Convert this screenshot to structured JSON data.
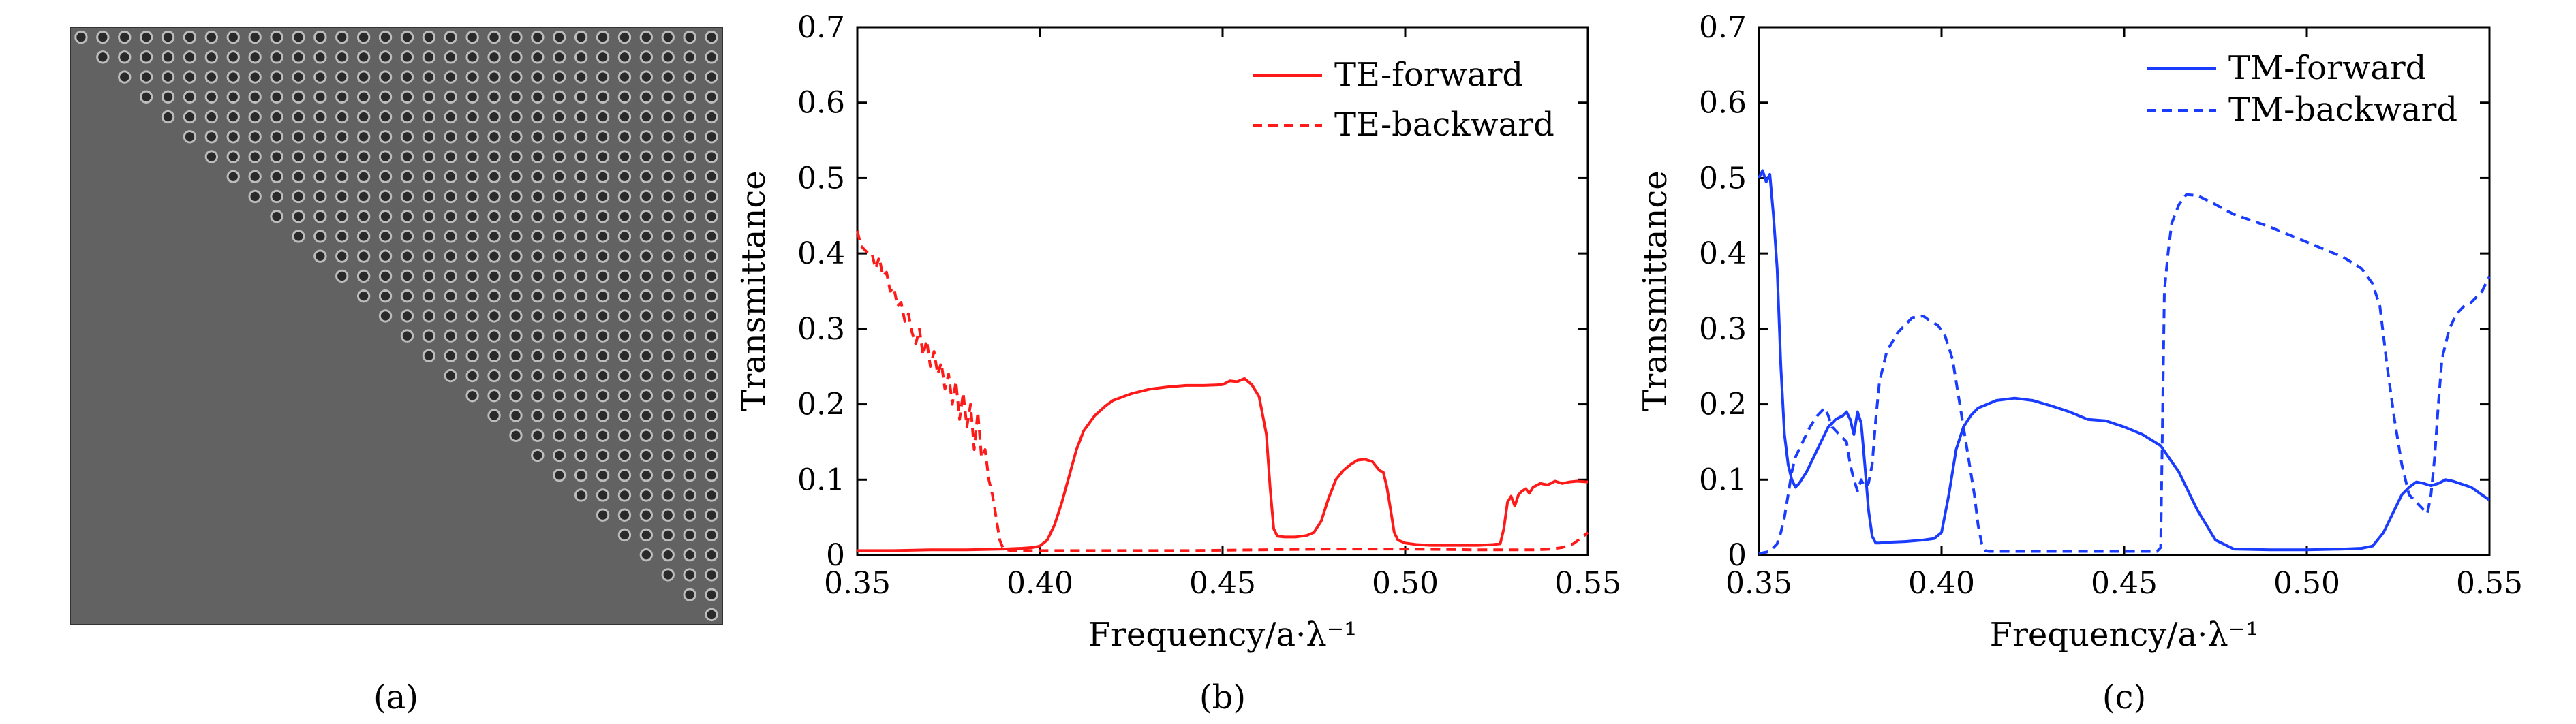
{
  "panel_labels": {
    "a": "(a)",
    "b": "(b)",
    "c": "(c)"
  },
  "colors": {
    "te": "#ff1a1a",
    "tm": "#1a3cff",
    "structure_bg": "#626262",
    "hole_dark": "#2a2a2a",
    "hole_ring": "#bdbdbd",
    "axis": "#000000"
  },
  "structure_image": {
    "rows": 30,
    "cols": 30,
    "description_hidden": true
  },
  "chart_data": [
    {
      "type": "line",
      "panel": "b",
      "xlabel": "Frequency/a·λ⁻¹",
      "ylabel": "Transmittance",
      "xlim": [
        0.35,
        0.55
      ],
      "ylim": [
        0,
        0.7
      ],
      "xticks": [
        0.35,
        0.4,
        0.45,
        0.5,
        0.55
      ],
      "xtick_labels": [
        "0.35",
        "0.40",
        "0.45",
        "0.50",
        "0.55"
      ],
      "yticks": [
        0,
        0.1,
        0.2,
        0.3,
        0.4,
        0.5,
        0.6,
        0.7
      ],
      "ytick_labels": [
        "0",
        "0.1",
        "0.2",
        "0.3",
        "0.4",
        "0.5",
        "0.6",
        "0.7"
      ],
      "legend_position": "top-right",
      "series": [
        {
          "name": "TE-forward",
          "style": "solid",
          "color": "#ff1a1a",
          "x": [
            0.35,
            0.36,
            0.37,
            0.38,
            0.39,
            0.395,
            0.398,
            0.4,
            0.402,
            0.404,
            0.406,
            0.408,
            0.41,
            0.412,
            0.415,
            0.418,
            0.42,
            0.425,
            0.43,
            0.435,
            0.44,
            0.445,
            0.45,
            0.452,
            0.454,
            0.456,
            0.458,
            0.46,
            0.461,
            0.462,
            0.463,
            0.464,
            0.465,
            0.467,
            0.47,
            0.473,
            0.475,
            0.477,
            0.479,
            0.481,
            0.483,
            0.485,
            0.487,
            0.489,
            0.491,
            0.493,
            0.494,
            0.495,
            0.496,
            0.497,
            0.498,
            0.5,
            0.503,
            0.507,
            0.51,
            0.515,
            0.52,
            0.524,
            0.526,
            0.527,
            0.528,
            0.529,
            0.53,
            0.531,
            0.532,
            0.533,
            0.534,
            0.535,
            0.537,
            0.539,
            0.541,
            0.543,
            0.545,
            0.547,
            0.55
          ],
          "y": [
            0.006,
            0.006,
            0.007,
            0.007,
            0.008,
            0.009,
            0.01,
            0.012,
            0.02,
            0.04,
            0.07,
            0.105,
            0.14,
            0.165,
            0.185,
            0.198,
            0.205,
            0.214,
            0.22,
            0.223,
            0.225,
            0.225,
            0.226,
            0.231,
            0.23,
            0.234,
            0.226,
            0.21,
            0.185,
            0.16,
            0.09,
            0.035,
            0.025,
            0.024,
            0.024,
            0.026,
            0.03,
            0.045,
            0.075,
            0.1,
            0.112,
            0.12,
            0.126,
            0.127,
            0.124,
            0.112,
            0.11,
            0.09,
            0.06,
            0.03,
            0.02,
            0.016,
            0.014,
            0.013,
            0.013,
            0.013,
            0.013,
            0.014,
            0.015,
            0.035,
            0.07,
            0.078,
            0.065,
            0.08,
            0.085,
            0.088,
            0.082,
            0.09,
            0.095,
            0.093,
            0.098,
            0.095,
            0.097,
            0.098,
            0.097
          ]
        },
        {
          "name": "TE-backward",
          "style": "dashed",
          "color": "#ff1a1a",
          "x": [
            0.35,
            0.351,
            0.352,
            0.353,
            0.354,
            0.355,
            0.356,
            0.357,
            0.358,
            0.359,
            0.36,
            0.361,
            0.362,
            0.363,
            0.364,
            0.365,
            0.366,
            0.367,
            0.368,
            0.369,
            0.37,
            0.371,
            0.372,
            0.373,
            0.374,
            0.375,
            0.376,
            0.377,
            0.378,
            0.379,
            0.38,
            0.381,
            0.382,
            0.383,
            0.384,
            0.385,
            0.386,
            0.387,
            0.388,
            0.389,
            0.39,
            0.392,
            0.4,
            0.42,
            0.44,
            0.46,
            0.48,
            0.5,
            0.52,
            0.535,
            0.54,
            0.543,
            0.546,
            0.548,
            0.55
          ],
          "y": [
            0.43,
            0.41,
            0.405,
            0.4,
            0.4,
            0.38,
            0.395,
            0.37,
            0.375,
            0.35,
            0.355,
            0.33,
            0.335,
            0.31,
            0.32,
            0.295,
            0.28,
            0.3,
            0.265,
            0.285,
            0.25,
            0.27,
            0.24,
            0.255,
            0.22,
            0.24,
            0.2,
            0.23,
            0.18,
            0.215,
            0.17,
            0.2,
            0.14,
            0.19,
            0.13,
            0.14,
            0.1,
            0.08,
            0.05,
            0.02,
            0.008,
            0.006,
            0.006,
            0.006,
            0.006,
            0.007,
            0.008,
            0.008,
            0.007,
            0.007,
            0.008,
            0.01,
            0.015,
            0.022,
            0.03
          ]
        }
      ]
    },
    {
      "type": "line",
      "panel": "c",
      "xlabel": "Frequency/a·λ⁻¹",
      "ylabel": "Transmittance",
      "xlim": [
        0.35,
        0.55
      ],
      "ylim": [
        0,
        0.7
      ],
      "xticks": [
        0.35,
        0.4,
        0.45,
        0.5,
        0.55
      ],
      "xtick_labels": [
        "0.35",
        "0.40",
        "0.45",
        "0.50",
        "0.55"
      ],
      "yticks": [
        0,
        0.1,
        0.2,
        0.3,
        0.4,
        0.5,
        0.6,
        0.7
      ],
      "ytick_labels": [
        "0",
        "0.1",
        "0.2",
        "0.3",
        "0.4",
        "0.5",
        "0.6",
        "0.7"
      ],
      "legend_position": "top-right",
      "series": [
        {
          "name": "TM-forward",
          "style": "solid",
          "color": "#1a3cff",
          "x": [
            0.35,
            0.351,
            0.352,
            0.353,
            0.354,
            0.355,
            0.356,
            0.357,
            0.358,
            0.359,
            0.36,
            0.361,
            0.363,
            0.365,
            0.367,
            0.369,
            0.371,
            0.373,
            0.374,
            0.375,
            0.376,
            0.377,
            0.378,
            0.379,
            0.38,
            0.381,
            0.382,
            0.383,
            0.385,
            0.39,
            0.395,
            0.398,
            0.4,
            0.402,
            0.404,
            0.406,
            0.408,
            0.41,
            0.415,
            0.42,
            0.425,
            0.43,
            0.435,
            0.44,
            0.445,
            0.45,
            0.455,
            0.46,
            0.465,
            0.47,
            0.475,
            0.48,
            0.49,
            0.5,
            0.51,
            0.515,
            0.518,
            0.521,
            0.524,
            0.526,
            0.528,
            0.53,
            0.532,
            0.534,
            0.536,
            0.538,
            0.54,
            0.545,
            0.55
          ],
          "y": [
            0.5,
            0.51,
            0.495,
            0.505,
            0.45,
            0.38,
            0.25,
            0.16,
            0.12,
            0.1,
            0.09,
            0.095,
            0.11,
            0.13,
            0.15,
            0.17,
            0.18,
            0.185,
            0.19,
            0.18,
            0.16,
            0.19,
            0.175,
            0.12,
            0.06,
            0.025,
            0.016,
            0.016,
            0.017,
            0.018,
            0.02,
            0.022,
            0.03,
            0.08,
            0.14,
            0.17,
            0.185,
            0.195,
            0.205,
            0.208,
            0.205,
            0.198,
            0.19,
            0.18,
            0.178,
            0.17,
            0.16,
            0.145,
            0.11,
            0.06,
            0.02,
            0.008,
            0.007,
            0.007,
            0.008,
            0.009,
            0.012,
            0.03,
            0.06,
            0.08,
            0.09,
            0.097,
            0.095,
            0.092,
            0.095,
            0.1,
            0.098,
            0.09,
            0.073
          ]
        },
        {
          "name": "TM-backward",
          "style": "dashed",
          "color": "#1a3cff",
          "x": [
            0.35,
            0.353,
            0.355,
            0.356,
            0.357,
            0.358,
            0.359,
            0.36,
            0.362,
            0.364,
            0.366,
            0.368,
            0.369,
            0.37,
            0.372,
            0.374,
            0.375,
            0.376,
            0.377,
            0.378,
            0.379,
            0.38,
            0.381,
            0.382,
            0.383,
            0.385,
            0.388,
            0.39,
            0.392,
            0.395,
            0.397,
            0.399,
            0.401,
            0.403,
            0.405,
            0.407,
            0.409,
            0.41,
            0.411,
            0.412,
            0.413,
            0.42,
            0.43,
            0.44,
            0.45,
            0.459,
            0.46,
            0.461,
            0.462,
            0.463,
            0.465,
            0.467,
            0.47,
            0.475,
            0.48,
            0.49,
            0.5,
            0.51,
            0.515,
            0.518,
            0.52,
            0.521,
            0.522,
            0.524,
            0.526,
            0.528,
            0.53,
            0.532,
            0.533,
            0.534,
            0.535,
            0.536,
            0.537,
            0.539,
            0.541,
            0.543,
            0.545,
            0.548,
            0.55
          ],
          "y": [
            0.002,
            0.005,
            0.015,
            0.03,
            0.05,
            0.08,
            0.11,
            0.13,
            0.15,
            0.17,
            0.185,
            0.195,
            0.185,
            0.17,
            0.16,
            0.15,
            0.12,
            0.1,
            0.085,
            0.1,
            0.09,
            0.095,
            0.12,
            0.18,
            0.23,
            0.27,
            0.295,
            0.305,
            0.315,
            0.317,
            0.31,
            0.305,
            0.29,
            0.26,
            0.2,
            0.14,
            0.08,
            0.04,
            0.015,
            0.006,
            0.005,
            0.005,
            0.005,
            0.005,
            0.005,
            0.005,
            0.01,
            0.35,
            0.4,
            0.44,
            0.465,
            0.478,
            0.477,
            0.465,
            0.452,
            0.435,
            0.415,
            0.395,
            0.38,
            0.36,
            0.33,
            0.29,
            0.25,
            0.18,
            0.12,
            0.08,
            0.07,
            0.06,
            0.055,
            0.08,
            0.13,
            0.2,
            0.26,
            0.3,
            0.32,
            0.33,
            0.335,
            0.35,
            0.37
          ]
        }
      ]
    }
  ]
}
